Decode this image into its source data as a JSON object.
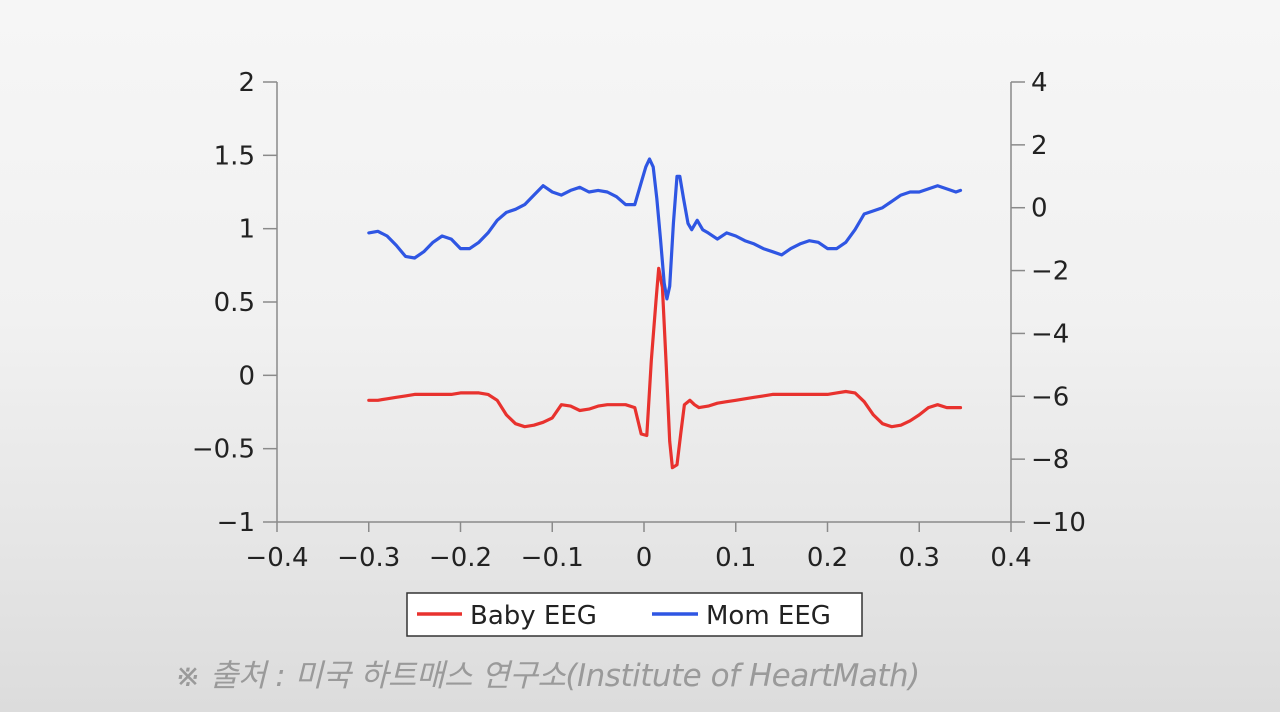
{
  "chart_data": {
    "type": "line",
    "title": "",
    "xlabel": "",
    "ylabel": "",
    "xlim": [
      -0.4,
      0.4
    ],
    "ylim": [
      -1,
      2
    ],
    "y2lim": [
      -10,
      4
    ],
    "x_ticks": [
      -0.4,
      -0.3,
      -0.2,
      -0.1,
      0,
      0.1,
      0.2,
      0.3,
      0.4
    ],
    "x_tick_labels": [
      "−0.4",
      "−0.3",
      "−0.2",
      "−0.1",
      "0",
      "0.1",
      "0.2",
      "0.3",
      "0.4"
    ],
    "y_ticks": [
      -1,
      -0.5,
      0,
      0.5,
      1,
      1.5,
      2
    ],
    "y_tick_labels": [
      "−1",
      "−0.5",
      "0",
      "0.5",
      "1",
      "1.5",
      "2"
    ],
    "y2_ticks": [
      -10,
      -8,
      -6,
      -4,
      -2,
      0,
      2,
      4
    ],
    "y2_tick_labels": [
      "−10",
      "−8",
      "−6",
      "−4",
      "−2",
      "0",
      "2",
      "4"
    ],
    "grid": false,
    "legend_position": "bottom-center",
    "series": [
      {
        "name": "Baby EEG",
        "axis": "left",
        "color": "#e8322e",
        "points": [
          [
            -0.3,
            -0.17
          ],
          [
            -0.29,
            -0.17
          ],
          [
            -0.28,
            -0.16
          ],
          [
            -0.27,
            -0.15
          ],
          [
            -0.26,
            -0.14
          ],
          [
            -0.25,
            -0.13
          ],
          [
            -0.24,
            -0.13
          ],
          [
            -0.23,
            -0.13
          ],
          [
            -0.22,
            -0.13
          ],
          [
            -0.21,
            -0.13
          ],
          [
            -0.2,
            -0.12
          ],
          [
            -0.19,
            -0.12
          ],
          [
            -0.18,
            -0.12
          ],
          [
            -0.17,
            -0.13
          ],
          [
            -0.16,
            -0.17
          ],
          [
            -0.15,
            -0.27
          ],
          [
            -0.14,
            -0.33
          ],
          [
            -0.13,
            -0.35
          ],
          [
            -0.12,
            -0.34
          ],
          [
            -0.11,
            -0.32
          ],
          [
            -0.1,
            -0.29
          ],
          [
            -0.09,
            -0.2
          ],
          [
            -0.08,
            -0.21
          ],
          [
            -0.07,
            -0.24
          ],
          [
            -0.06,
            -0.23
          ],
          [
            -0.05,
            -0.21
          ],
          [
            -0.04,
            -0.2
          ],
          [
            -0.03,
            -0.2
          ],
          [
            -0.02,
            -0.2
          ],
          [
            -0.01,
            -0.22
          ],
          [
            -0.003,
            -0.4
          ],
          [
            0.003,
            -0.41
          ],
          [
            0.008,
            0.1
          ],
          [
            0.013,
            0.5
          ],
          [
            0.016,
            0.73
          ],
          [
            0.02,
            0.6
          ],
          [
            0.024,
            0.1
          ],
          [
            0.028,
            -0.45
          ],
          [
            0.031,
            -0.63
          ],
          [
            0.036,
            -0.61
          ],
          [
            0.04,
            -0.4
          ],
          [
            0.044,
            -0.2
          ],
          [
            0.05,
            -0.17
          ],
          [
            0.055,
            -0.2
          ],
          [
            0.06,
            -0.22
          ],
          [
            0.07,
            -0.21
          ],
          [
            0.08,
            -0.19
          ],
          [
            0.09,
            -0.18
          ],
          [
            0.1,
            -0.17
          ],
          [
            0.11,
            -0.16
          ],
          [
            0.12,
            -0.15
          ],
          [
            0.13,
            -0.14
          ],
          [
            0.14,
            -0.13
          ],
          [
            0.15,
            -0.13
          ],
          [
            0.16,
            -0.13
          ],
          [
            0.17,
            -0.13
          ],
          [
            0.18,
            -0.13
          ],
          [
            0.19,
            -0.13
          ],
          [
            0.2,
            -0.13
          ],
          [
            0.21,
            -0.12
          ],
          [
            0.22,
            -0.11
          ],
          [
            0.23,
            -0.12
          ],
          [
            0.24,
            -0.18
          ],
          [
            0.25,
            -0.27
          ],
          [
            0.26,
            -0.33
          ],
          [
            0.27,
            -0.35
          ],
          [
            0.28,
            -0.34
          ],
          [
            0.29,
            -0.31
          ],
          [
            0.3,
            -0.27
          ],
          [
            0.31,
            -0.22
          ],
          [
            0.32,
            -0.2
          ],
          [
            0.33,
            -0.22
          ],
          [
            0.34,
            -0.22
          ],
          [
            0.345,
            -0.22
          ]
        ]
      },
      {
        "name": "Mom EEG",
        "axis": "right",
        "color": "#2f56e3",
        "points": [
          [
            -0.3,
            -0.8
          ],
          [
            -0.29,
            -0.75
          ],
          [
            -0.28,
            -0.9
          ],
          [
            -0.27,
            -1.2
          ],
          [
            -0.26,
            -1.55
          ],
          [
            -0.25,
            -1.6
          ],
          [
            -0.24,
            -1.4
          ],
          [
            -0.23,
            -1.1
          ],
          [
            -0.22,
            -0.9
          ],
          [
            -0.21,
            -1.0
          ],
          [
            -0.2,
            -1.3
          ],
          [
            -0.19,
            -1.3
          ],
          [
            -0.18,
            -1.1
          ],
          [
            -0.17,
            -0.8
          ],
          [
            -0.16,
            -0.4
          ],
          [
            -0.15,
            -0.15
          ],
          [
            -0.14,
            -0.05
          ],
          [
            -0.13,
            0.1
          ],
          [
            -0.12,
            0.4
          ],
          [
            -0.11,
            0.7
          ],
          [
            -0.1,
            0.5
          ],
          [
            -0.09,
            0.4
          ],
          [
            -0.08,
            0.55
          ],
          [
            -0.07,
            0.65
          ],
          [
            -0.06,
            0.5
          ],
          [
            -0.05,
            0.55
          ],
          [
            -0.04,
            0.5
          ],
          [
            -0.03,
            0.35
          ],
          [
            -0.02,
            0.1
          ],
          [
            -0.01,
            0.1
          ],
          [
            -0.003,
            0.8
          ],
          [
            0.002,
            1.3
          ],
          [
            0.006,
            1.55
          ],
          [
            0.01,
            1.3
          ],
          [
            0.014,
            0.3
          ],
          [
            0.018,
            -1.0
          ],
          [
            0.022,
            -2.4
          ],
          [
            0.025,
            -2.9
          ],
          [
            0.028,
            -2.5
          ],
          [
            0.032,
            -0.5
          ],
          [
            0.036,
            1.0
          ],
          [
            0.039,
            1.0
          ],
          [
            0.043,
            0.3
          ],
          [
            0.048,
            -0.5
          ],
          [
            0.052,
            -0.7
          ],
          [
            0.058,
            -0.4
          ],
          [
            0.064,
            -0.7
          ],
          [
            0.07,
            -0.8
          ],
          [
            0.08,
            -1.0
          ],
          [
            0.09,
            -0.8
          ],
          [
            0.1,
            -0.9
          ],
          [
            0.11,
            -1.05
          ],
          [
            0.12,
            -1.15
          ],
          [
            0.13,
            -1.3
          ],
          [
            0.14,
            -1.4
          ],
          [
            0.15,
            -1.5
          ],
          [
            0.16,
            -1.3
          ],
          [
            0.17,
            -1.15
          ],
          [
            0.18,
            -1.05
          ],
          [
            0.19,
            -1.1
          ],
          [
            0.2,
            -1.3
          ],
          [
            0.21,
            -1.3
          ],
          [
            0.22,
            -1.1
          ],
          [
            0.23,
            -0.7
          ],
          [
            0.24,
            -0.2
          ],
          [
            0.25,
            -0.1
          ],
          [
            0.26,
            0.0
          ],
          [
            0.27,
            0.2
          ],
          [
            0.28,
            0.4
          ],
          [
            0.29,
            0.5
          ],
          [
            0.3,
            0.5
          ],
          [
            0.31,
            0.6
          ],
          [
            0.32,
            0.7
          ],
          [
            0.33,
            0.6
          ],
          [
            0.34,
            0.5
          ],
          [
            0.345,
            0.55
          ]
        ]
      }
    ]
  },
  "source_note": "※ 출처 : 미국 하트매스 연구소(Institute of HeartMath)"
}
